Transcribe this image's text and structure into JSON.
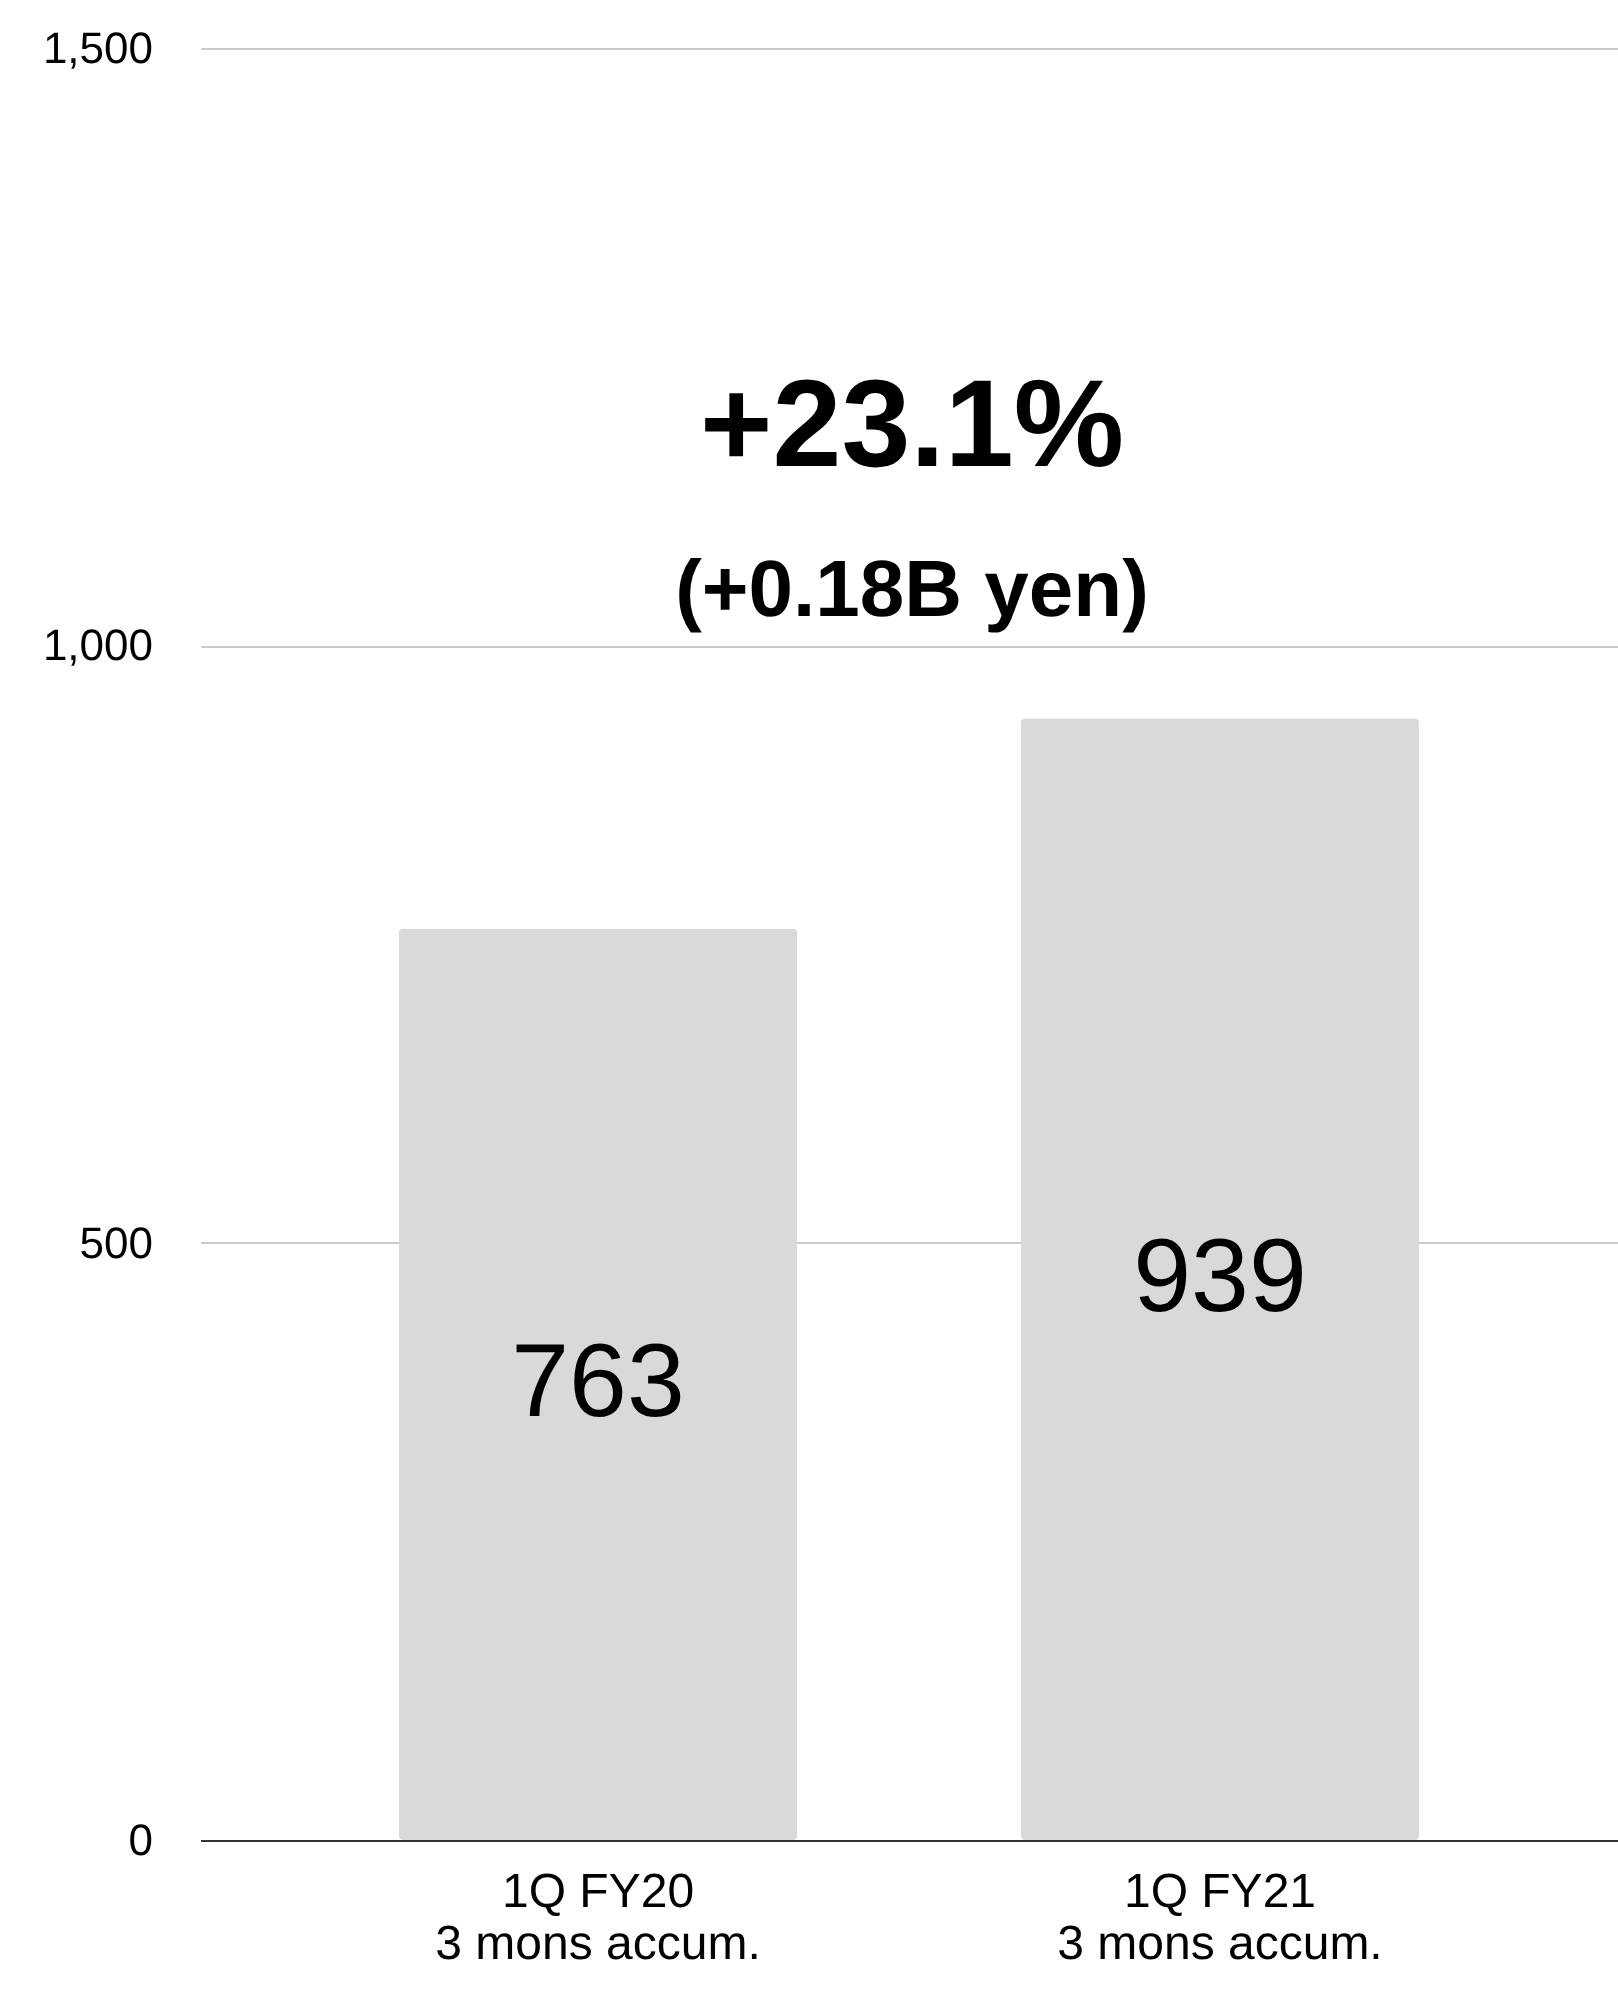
{
  "chart_data": {
    "type": "bar",
    "categories": [
      "1Q FY20\n3 mons accum.",
      "1Q FY21\n3 mons accum."
    ],
    "values": [
      763,
      939
    ],
    "color": "#d9d9d9",
    "data_labels": true,
    "ylim": [
      0,
      1500
    ],
    "yticks": [
      0,
      500,
      {
        "value": 1000,
        "label": "1,000"
      },
      {
        "value": 1500,
        "label": "1,500"
      }
    ],
    "grid": "y",
    "annotations": [
      "+23.1%",
      "(+0.18B yen)"
    ]
  }
}
